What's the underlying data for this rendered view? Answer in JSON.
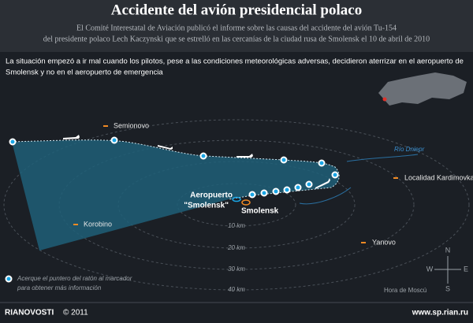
{
  "header": {
    "title": "Accidente del avión presidencial polaco",
    "subtitle": [
      "El Comité Interestatal de Aviación publicó el informe sobre las causas del accidente del avión Tu-154",
      "del presidente polaco Lech Kaczynski que se estrelló en las cercanías de la ciudad rusa de Smolensk el 10 de abril de 2010"
    ]
  },
  "intro": [
    "La situación empezó a ir mal cuando los pilotos, pese a las condiciones meteorológicas adversas, decidieron aterrizar en el aeropuerto de",
    "Smolensk y no en el aeropuerto de emergencia"
  ],
  "map": {
    "places": [
      "Semionovo",
      "Korobino",
      "Yanovo",
      "Localidad Kardimovka"
    ],
    "river": "Río Dniepr",
    "airport": [
      "Aeropuerto",
      "\"Smolensk\""
    ],
    "city": "Smolensk",
    "distances": [
      "10 km",
      "20 km",
      "30 km",
      "40 km"
    ],
    "compass": {
      "n": "N",
      "s": "S",
      "e": "E",
      "w": "W"
    }
  },
  "legend": {
    "hint": [
      "Acerque el puntero del ratón al marcador",
      "para obtener más información"
    ],
    "time": "Hora de Moscú"
  },
  "footer": {
    "brand": "RIANOVOSTI",
    "copyright": "© 2011",
    "url": "www.sp.rian.ru"
  }
}
